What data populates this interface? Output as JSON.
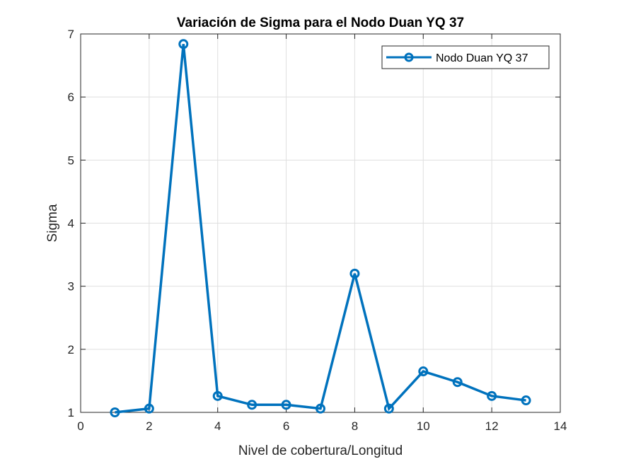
{
  "chart_data": {
    "type": "line",
    "title": "Variación de Sigma para el Nodo Duan YQ 37",
    "xlabel": "Nivel de cobertura/Longitud",
    "ylabel": "Sigma",
    "xlim": [
      0,
      14
    ],
    "ylim": [
      1,
      7
    ],
    "xticks": [
      0,
      2,
      4,
      6,
      8,
      10,
      12,
      14
    ],
    "yticks": [
      1,
      2,
      3,
      4,
      5,
      6,
      7
    ],
    "grid": true,
    "legend_position": "top-right",
    "series": [
      {
        "name": "Nodo Duan YQ 37",
        "color": "#0072BD",
        "marker": "circle",
        "x": [
          1,
          2,
          3,
          4,
          5,
          6,
          7,
          8,
          9,
          10,
          11,
          12,
          13
        ],
        "y": [
          1.0,
          1.06,
          6.84,
          1.26,
          1.12,
          1.12,
          1.06,
          3.2,
          1.06,
          1.65,
          1.48,
          1.26,
          1.19
        ]
      }
    ]
  }
}
